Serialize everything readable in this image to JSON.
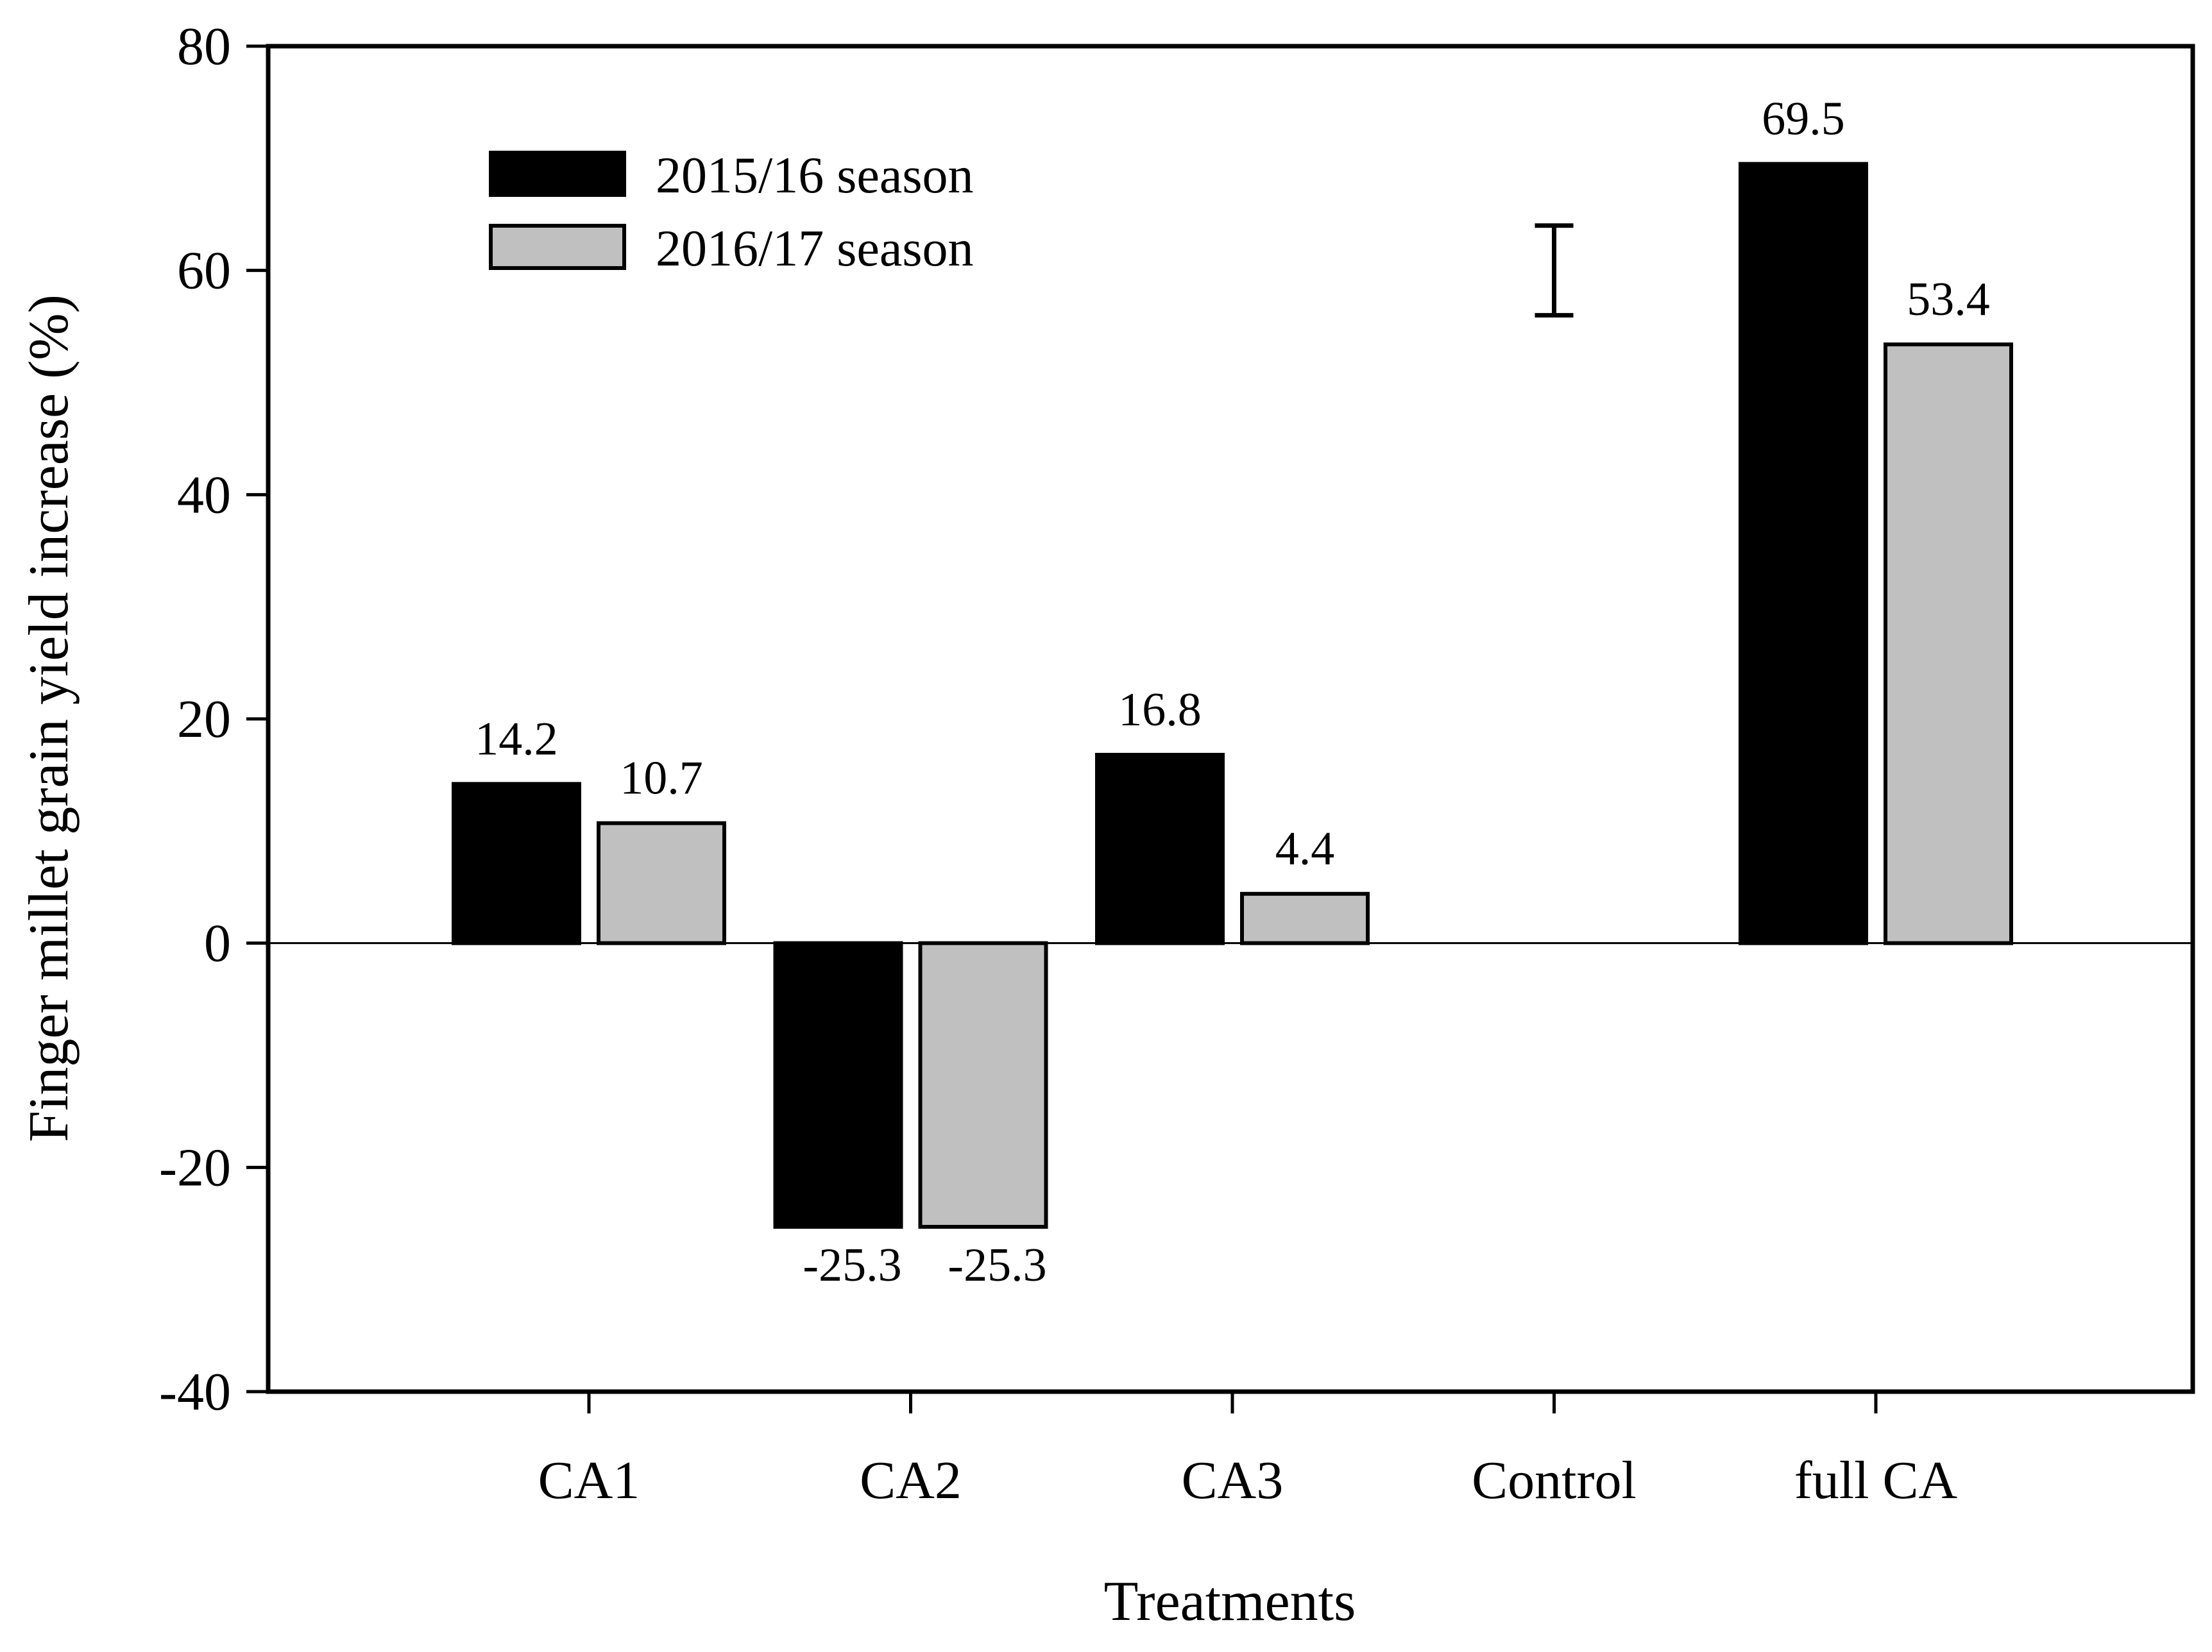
{
  "chart_data": {
    "type": "bar",
    "title": "",
    "xlabel": "Treatments",
    "ylabel": "Finger millet grain yield increase (%)",
    "categories": [
      "CA1",
      "CA2",
      "CA3",
      "Control",
      "full CA"
    ],
    "series": [
      {
        "name": "2015/16 season",
        "color": "#000000",
        "values": [
          14.2,
          -25.3,
          16.8,
          null,
          69.5
        ],
        "labels": [
          "14.2",
          "-25.3",
          "16.8",
          "",
          "69.5"
        ]
      },
      {
        "name": "2016/17 season",
        "color": "#c0c0c0",
        "values": [
          10.7,
          -25.3,
          4.4,
          null,
          53.4
        ],
        "labels": [
          "10.7",
          "-25.3",
          "4.4",
          "",
          "53.4"
        ]
      }
    ],
    "ylim": [
      -40,
      80
    ],
    "yticks": [
      "80",
      "60",
      "40",
      "20",
      "0",
      "-20",
      "-40"
    ],
    "legend_position": "top-left",
    "grid": false,
    "error_bar": {
      "x_category": "Control",
      "low": 56,
      "high": 64
    }
  }
}
